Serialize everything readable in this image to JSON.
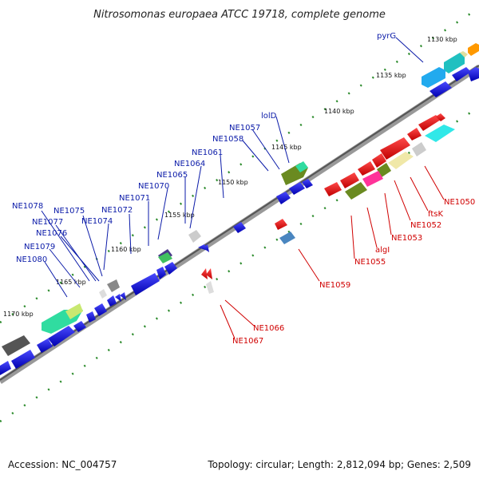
{
  "title": "Nitrosomonas europaea ATCC 19718, complete genome",
  "footer": {
    "accession": "Accession: NC_004757",
    "summary": "Topology: circular; Length: 2,812,094 bp; Genes: 2,509"
  },
  "kbp_ticks": [
    "1130 kbp",
    "1135 kbp",
    "1140 kbp",
    "1145 kbp",
    "1150 kbp",
    "1155 kbp",
    "1160 kbp",
    "1165 kbp",
    "1170 kbp"
  ],
  "genes_upper": [
    "pyrG",
    "lolD",
    "NE1057",
    "NE1058",
    "NE1061",
    "NE1064",
    "NE1065",
    "NE1070",
    "NE1071",
    "NE1072",
    "NE1074",
    "NE1075",
    "NE1076",
    "NE1077",
    "NE1078",
    "NE1079",
    "NE1080"
  ],
  "genes_lower": [
    "NE1050",
    "ftsK",
    "NE1052",
    "NE1053",
    "algI",
    "NE1055",
    "NE1059",
    "NE1066",
    "NE1067"
  ],
  "colors": {
    "blue_gene": "#1010d8",
    "red_gene": "#ee0000",
    "label_blue": "#0a1aa8",
    "label_red": "#d00000",
    "tick_green": "#2a8a2a",
    "backbone": "#777777"
  }
}
